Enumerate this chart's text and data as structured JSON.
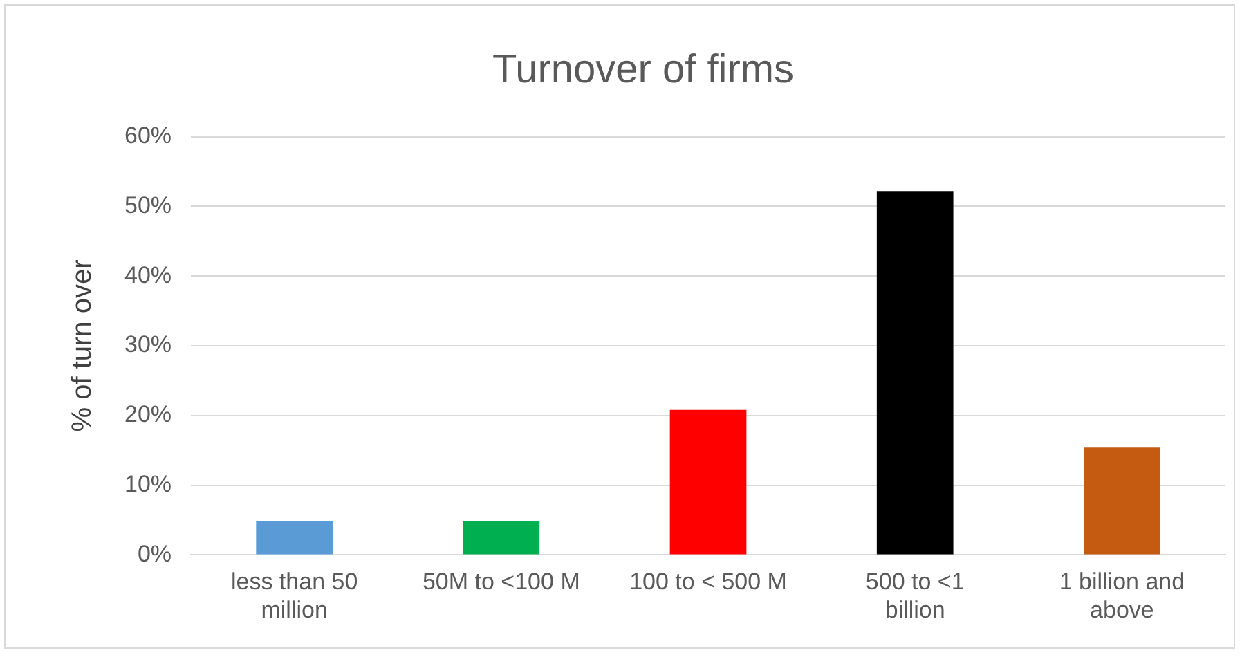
{
  "chart_data": {
    "type": "bar",
    "title": "Turnover of firms",
    "ylabel": "% of turn over",
    "categories": [
      "less than 50 million",
      "50M to <100 M",
      "100 to < 500 M",
      "500 to <1 billion",
      "1 billion and above"
    ],
    "values": [
      4.9,
      4.9,
      20.8,
      52.2,
      15.4
    ],
    "colors": [
      "#5b9bd5",
      "#00b050",
      "#ff0000",
      "#000000",
      "#c55a11"
    ],
    "ylim": [
      0,
      60
    ],
    "yticks": [
      {
        "value": 0,
        "label": "0%"
      },
      {
        "value": 10,
        "label": "10%"
      },
      {
        "value": 20,
        "label": "20%"
      },
      {
        "value": 30,
        "label": "30%"
      },
      {
        "value": 40,
        "label": "40%"
      },
      {
        "value": 50,
        "label": "50%"
      },
      {
        "value": 60,
        "label": "60%"
      }
    ],
    "grid": "y",
    "legend": false
  }
}
